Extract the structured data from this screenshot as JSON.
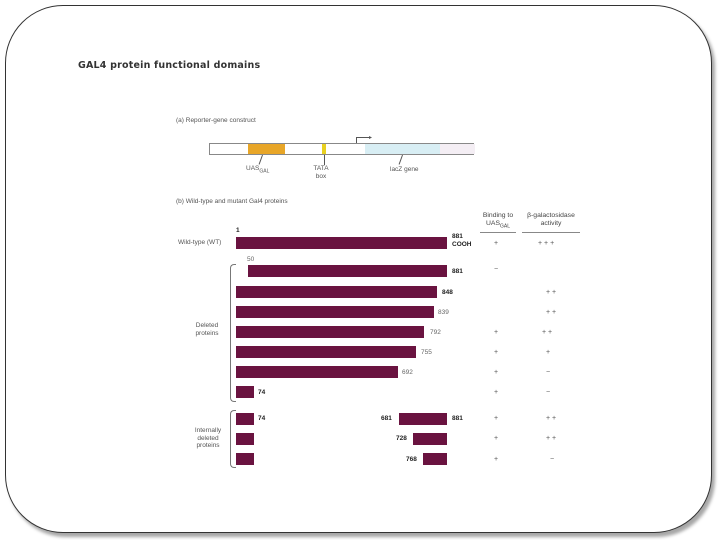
{
  "slide": {
    "title": "GAL4 protein functional domains"
  },
  "figure": {
    "section_a": "(a) Reporter-gene construct",
    "construct_labels": {
      "uas": "UAS",
      "uas_sub": "GAL",
      "tata": "TATA box",
      "lacz": "lacZ gene"
    },
    "section_b": "(b) Wild-type and mutant Gal4 proteins",
    "col_binding": "Binding to UAS",
    "col_binding_sub": "GAL",
    "col_activity": "β-galactosidase activity",
    "wildtype_label": "Wild-type (WT)",
    "deleted_label": "Deleted proteins",
    "internal_label": "Internally deleted proteins",
    "rows": [
      {
        "id": "wt",
        "left_num": "1",
        "right_num": "881",
        "right_num2": "COOH",
        "binding": "+",
        "activity": "+ + +"
      },
      {
        "id": "d50",
        "left_num": "50",
        "right_num": "881",
        "binding": "−",
        "activity": ""
      },
      {
        "id": "d848",
        "right_num": "848",
        "binding": "",
        "activity": "+ +"
      },
      {
        "id": "d839",
        "right_num": "839",
        "binding": "",
        "activity": "+ +"
      },
      {
        "id": "d792",
        "right_num": "792",
        "binding": "+",
        "activity": "+ +"
      },
      {
        "id": "d755",
        "right_num": "755",
        "binding": "+",
        "activity": "+"
      },
      {
        "id": "d692",
        "right_num": "692",
        "binding": "+",
        "activity": "−"
      },
      {
        "id": "d74",
        "right_num": "74",
        "binding": "+",
        "activity": "−"
      },
      {
        "id": "i1",
        "left_num": "74",
        "mid_num": "681",
        "right_num": "881",
        "binding": "+",
        "activity": "+ +"
      },
      {
        "id": "i2",
        "mid_num": "728",
        "binding": "+",
        "activity": "+ +"
      },
      {
        "id": "i3",
        "mid_num": "768",
        "binding": "+",
        "activity": "−"
      }
    ]
  }
}
